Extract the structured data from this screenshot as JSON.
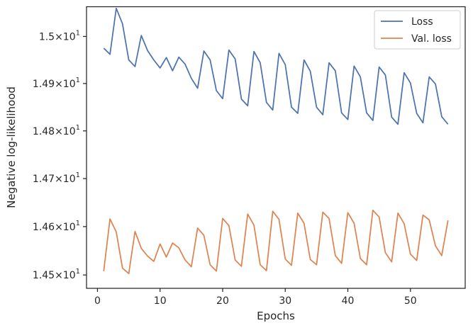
{
  "chart_data": {
    "type": "line",
    "title": "",
    "xlabel": "Epochs",
    "ylabel": "Negative log-likelihood",
    "xlim": [
      -1.75,
      58.75
    ],
    "ylim": [
      14.4725,
      15.0635
    ],
    "y_scale": "log",
    "grid": false,
    "legend_position": "top-right",
    "x_ticks": [
      0,
      10,
      20,
      30,
      40,
      50
    ],
    "x_tick_labels": [
      "0",
      "10",
      "20",
      "30",
      "40",
      "50"
    ],
    "y_ticks": [
      {
        "value": 14.5,
        "base": "1.45",
        "exp": "1"
      },
      {
        "value": 14.6,
        "base": "1.46",
        "exp": "1"
      },
      {
        "value": 14.7,
        "base": "1.47",
        "exp": "1"
      },
      {
        "value": 14.8,
        "base": "1.48",
        "exp": "1"
      },
      {
        "value": 14.9,
        "base": "1.49",
        "exp": "1"
      },
      {
        "value": 15.0,
        "base": "1.5",
        "exp": "1"
      }
    ],
    "y_tick_times": "×10",
    "x": [
      1,
      2,
      3,
      4,
      5,
      6,
      7,
      8,
      9,
      10,
      11,
      12,
      13,
      14,
      15,
      16,
      17,
      18,
      19,
      20,
      21,
      22,
      23,
      24,
      25,
      26,
      27,
      28,
      29,
      30,
      31,
      32,
      33,
      34,
      35,
      36,
      37,
      38,
      39,
      40,
      41,
      42,
      43,
      44,
      45,
      46,
      47,
      48,
      49,
      50,
      51,
      52,
      53,
      54,
      55,
      56
    ],
    "series": [
      {
        "name": "Loss",
        "color": "#4c72b0",
        "values": [
          14.975,
          14.962,
          15.06,
          15.027,
          14.95,
          14.936,
          15.002,
          14.97,
          14.95,
          14.933,
          14.955,
          14.927,
          14.956,
          14.941,
          14.911,
          14.89,
          14.969,
          14.95,
          14.885,
          14.868,
          14.971,
          14.952,
          14.867,
          14.853,
          14.968,
          14.944,
          14.86,
          14.844,
          14.964,
          14.94,
          14.85,
          14.837,
          14.95,
          14.926,
          14.85,
          14.834,
          14.944,
          14.927,
          14.838,
          14.824,
          14.937,
          14.914,
          14.838,
          14.822,
          14.935,
          14.918,
          14.829,
          14.814,
          14.923,
          14.901,
          14.837,
          14.817,
          14.914,
          14.899,
          14.83,
          14.814
        ]
      },
      {
        "name": "Val. loss",
        "color": "#dd8452",
        "values": [
          14.508,
          14.616,
          14.589,
          14.514,
          14.503,
          14.59,
          14.555,
          14.539,
          14.528,
          14.564,
          14.537,
          14.566,
          14.556,
          14.531,
          14.517,
          14.597,
          14.582,
          14.521,
          14.508,
          14.617,
          14.602,
          14.531,
          14.518,
          14.626,
          14.603,
          14.521,
          14.509,
          14.632,
          14.615,
          14.533,
          14.52,
          14.628,
          14.607,
          14.532,
          14.521,
          14.63,
          14.617,
          14.54,
          14.524,
          14.629,
          14.607,
          14.534,
          14.521,
          14.634,
          14.62,
          14.546,
          14.527,
          14.628,
          14.606,
          14.543,
          14.53,
          14.624,
          14.614,
          14.56,
          14.54,
          14.613
        ]
      }
    ]
  }
}
